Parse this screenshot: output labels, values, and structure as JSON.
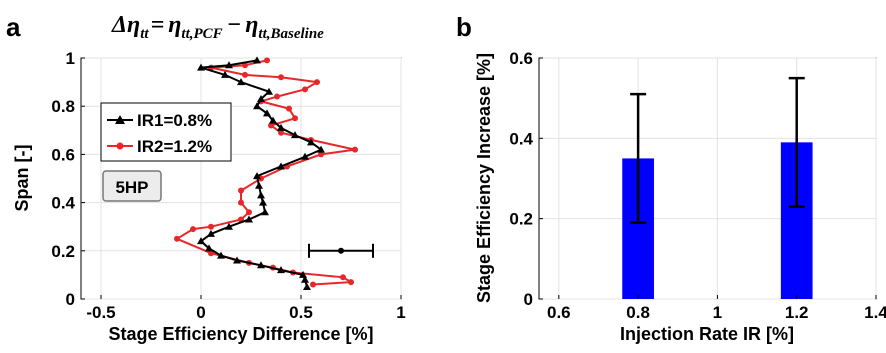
{
  "panels": {
    "a_label": "a",
    "b_label": "b"
  },
  "chart_data": [
    {
      "type": "line",
      "title_parts": {
        "delta": "Δ",
        "eta": "η",
        "sub_tt": "tt",
        "eq": "=",
        "minus": "−",
        "sub_pcf": "tt,PCF",
        "sub_base": "tt,Baseline"
      },
      "xlabel": "Stage Efficiency Difference [%]",
      "ylabel": "Span [-]",
      "xlim": [
        -0.6,
        1.0
      ],
      "ylim": [
        0,
        1
      ],
      "xticks": [
        -0.5,
        0,
        0.5,
        1
      ],
      "xtick_labels": [
        "-0.5",
        "0",
        "0.5",
        "1"
      ],
      "yticks": [
        0,
        0.2,
        0.4,
        0.6,
        0.8,
        1
      ],
      "ytick_labels": [
        "0",
        "0.2",
        "0.4",
        "0.6",
        "0.8",
        "1"
      ],
      "grid": true,
      "legend_position": "left, upper-middle",
      "annotation": "5HP",
      "series": [
        {
          "name": "IR1=0.8%",
          "color": "#000000",
          "marker": "triangle",
          "points": [
            [
              0.53,
              0.05
            ],
            [
              0.52,
              0.08
            ],
            [
              0.51,
              0.1
            ],
            [
              0.4,
              0.12
            ],
            [
              0.3,
              0.14
            ],
            [
              0.18,
              0.16
            ],
            [
              0.1,
              0.18
            ],
            [
              0.04,
              0.21
            ],
            [
              0.0,
              0.24
            ],
            [
              0.05,
              0.27
            ],
            [
              0.14,
              0.3
            ],
            [
              0.24,
              0.33
            ],
            [
              0.32,
              0.36
            ],
            [
              0.31,
              0.4
            ],
            [
              0.3,
              0.43
            ],
            [
              0.29,
              0.47
            ],
            [
              0.28,
              0.51
            ],
            [
              0.4,
              0.55
            ],
            [
              0.52,
              0.59
            ],
            [
              0.6,
              0.62
            ],
            [
              0.55,
              0.65
            ],
            [
              0.47,
              0.68
            ],
            [
              0.4,
              0.71
            ],
            [
              0.36,
              0.74
            ],
            [
              0.33,
              0.77
            ],
            [
              0.28,
              0.8
            ],
            [
              0.3,
              0.83
            ],
            [
              0.34,
              0.86
            ],
            [
              0.2,
              0.9
            ],
            [
              0.12,
              0.93
            ],
            [
              0.0,
              0.96
            ],
            [
              0.14,
              0.97
            ],
            [
              0.28,
              0.99
            ]
          ]
        },
        {
          "name": "IR2=1.2%",
          "color": "#e8272a",
          "marker": "circle",
          "points": [
            [
              0.56,
              0.06
            ],
            [
              0.75,
              0.07
            ],
            [
              0.71,
              0.09
            ],
            [
              0.46,
              0.11
            ],
            [
              0.36,
              0.13
            ],
            [
              0.24,
              0.15
            ],
            [
              0.05,
              0.19
            ],
            [
              -0.12,
              0.25
            ],
            [
              -0.04,
              0.29
            ],
            [
              0.05,
              0.3
            ],
            [
              0.2,
              0.33
            ],
            [
              0.24,
              0.36
            ],
            [
              0.2,
              0.4
            ],
            [
              0.2,
              0.45
            ],
            [
              0.3,
              0.5
            ],
            [
              0.43,
              0.55
            ],
            [
              0.6,
              0.6
            ],
            [
              0.77,
              0.62
            ],
            [
              0.55,
              0.66
            ],
            [
              0.4,
              0.69
            ],
            [
              0.35,
              0.72
            ],
            [
              0.47,
              0.75
            ],
            [
              0.44,
              0.79
            ],
            [
              0.3,
              0.82
            ],
            [
              0.38,
              0.84
            ],
            [
              0.52,
              0.87
            ],
            [
              0.58,
              0.9
            ],
            [
              0.4,
              0.92
            ],
            [
              0.22,
              0.93
            ],
            [
              0.05,
              0.96
            ],
            [
              0.22,
              0.97
            ],
            [
              0.33,
              0.99
            ]
          ]
        }
      ],
      "errorbar": {
        "x": 0.7,
        "y": 0.2,
        "xmin": 0.54,
        "xmax": 0.86
      }
    },
    {
      "type": "bar",
      "xlabel": "Injection Rate IR [%]",
      "ylabel": "Stage Efficiency Increase [%]",
      "xlim": [
        0.55,
        1.4
      ],
      "ylim": [
        0,
        0.6
      ],
      "xticks": [
        0.6,
        0.8,
        1.0,
        1.2,
        1.4
      ],
      "xtick_labels": [
        "0.6",
        "0.8",
        "1",
        "1.2",
        "1.4"
      ],
      "yticks": [
        0,
        0.2,
        0.4,
        0.6
      ],
      "ytick_labels": [
        "0",
        "0.2",
        "0.4",
        "0.6"
      ],
      "grid": true,
      "bar_color": "#0000ff",
      "bar_width": 0.08,
      "bars": [
        {
          "x": 0.8,
          "value": 0.35,
          "err_low": 0.19,
          "err_high": 0.51
        },
        {
          "x": 1.2,
          "value": 0.39,
          "err_low": 0.23,
          "err_high": 0.55
        }
      ]
    }
  ]
}
